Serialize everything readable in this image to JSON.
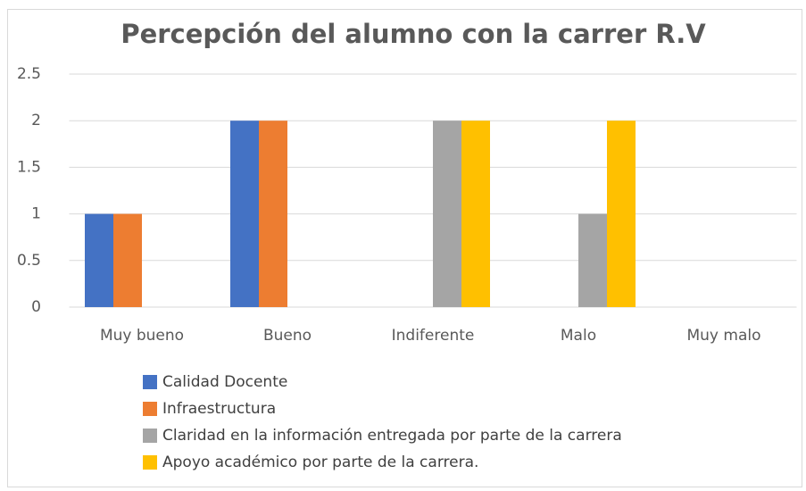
{
  "chart_data": {
    "type": "bar",
    "title": "Percepción del alumno con la carrer R.V",
    "categories": [
      "Muy bueno",
      "Bueno",
      "Indiferente",
      "Malo",
      "Muy malo"
    ],
    "series": [
      {
        "name": "Calidad Docente",
        "color": "#4472c4",
        "values": [
          1,
          2,
          0,
          0,
          0
        ]
      },
      {
        "name": "Infraestructura",
        "color": "#ed7d31",
        "values": [
          1,
          2,
          0,
          0,
          0
        ]
      },
      {
        "name": "Claridad en la información entregada por parte de la carrera",
        "color": "#a5a5a5",
        "values": [
          0,
          0,
          2,
          1,
          0
        ]
      },
      {
        "name": "Apoyo académico por parte de la carrera.",
        "color": "#ffc000",
        "values": [
          0,
          0,
          2,
          2,
          0
        ]
      }
    ],
    "ylim": [
      0,
      2.5
    ],
    "yticks": [
      0,
      0.5,
      1,
      1.5,
      2,
      2.5
    ],
    "grid": true,
    "legend": "bottom"
  }
}
